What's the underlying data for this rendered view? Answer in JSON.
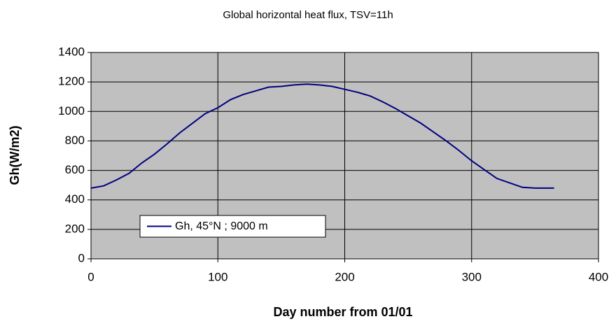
{
  "chart_data": {
    "type": "line",
    "title": "Global horizontal heat flux, TSV=11h",
    "xlabel": "Day number from 01/01",
    "ylabel": "Gh(W/m2)",
    "x": [
      0,
      10,
      20,
      30,
      40,
      50,
      60,
      70,
      80,
      90,
      100,
      110,
      120,
      130,
      140,
      150,
      160,
      170,
      180,
      190,
      200,
      210,
      220,
      230,
      240,
      250,
      260,
      270,
      280,
      290,
      300,
      310,
      320,
      330,
      340,
      350,
      365
    ],
    "series": [
      {
        "name": "Gh, 45°N ; 9000 m",
        "color": "#000080",
        "values": [
          480,
          495,
          535,
          580,
          650,
          710,
          780,
          855,
          920,
          985,
          1025,
          1080,
          1115,
          1140,
          1165,
          1170,
          1180,
          1185,
          1180,
          1170,
          1150,
          1130,
          1105,
          1065,
          1020,
          970,
          920,
          860,
          800,
          735,
          665,
          605,
          545,
          515,
          485,
          480,
          480
        ]
      }
    ],
    "xlim": [
      0,
      400
    ],
    "xticks": [
      0,
      100,
      200,
      300,
      400
    ],
    "ylim": [
      0,
      1400
    ],
    "yticks": [
      0,
      200,
      400,
      600,
      800,
      1000,
      1200,
      1400
    ],
    "grid": true,
    "legend": "lower left"
  }
}
